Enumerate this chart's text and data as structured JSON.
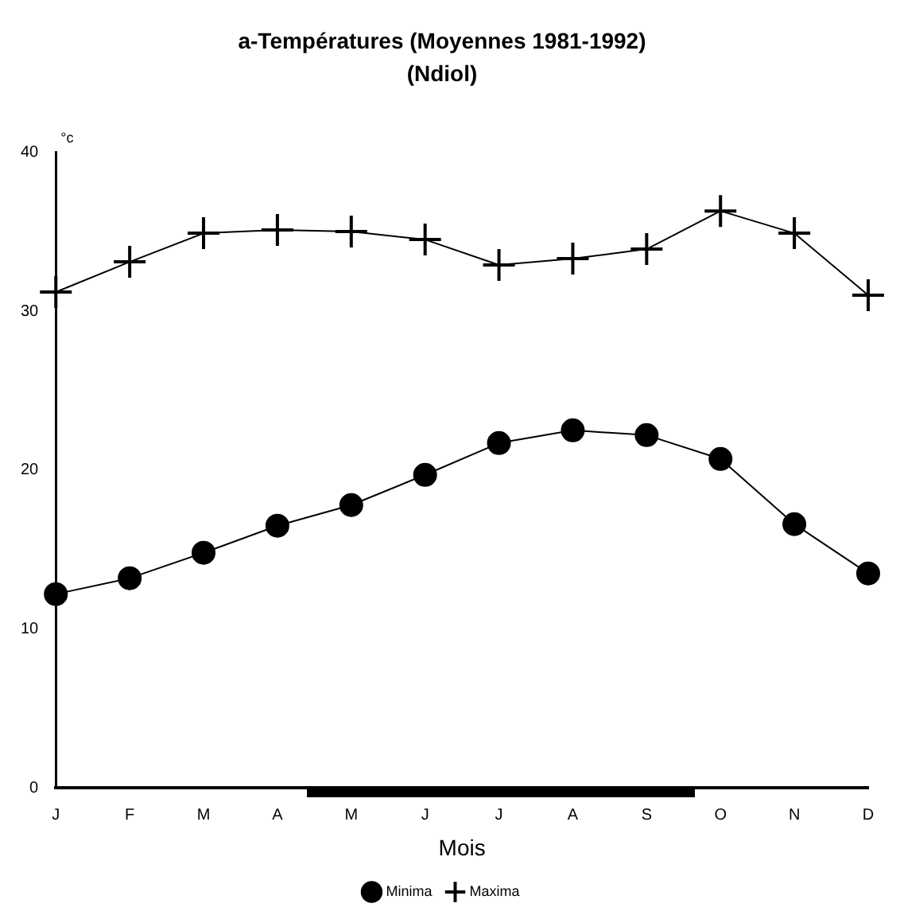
{
  "chart_data": {
    "type": "line",
    "title": "a-Températures (Moyennes 1981-1992)",
    "subtitle": "(Ndiol)",
    "xlabel": "Mois",
    "ylabel": "°c",
    "categories": [
      "J",
      "F",
      "M",
      "A",
      "M",
      "J",
      "J",
      "A",
      "S",
      "O",
      "N",
      "D"
    ],
    "series": [
      {
        "name": "Minima",
        "color": "#000000",
        "marker": "circle",
        "values": [
          12.2,
          13.2,
          14.8,
          16.5,
          17.8,
          19.7,
          21.7,
          22.5,
          22.2,
          20.7,
          16.6,
          13.5
        ]
      },
      {
        "name": "Maxima",
        "color": "#000000",
        "marker": "cross",
        "values": [
          31.2,
          33.1,
          34.9,
          35.1,
          35.0,
          34.5,
          32.9,
          33.3,
          33.9,
          36.3,
          34.9,
          31.0
        ]
      }
    ],
    "ylim": [
      0,
      40
    ],
    "yticks": [
      0,
      10,
      20,
      30,
      40
    ],
    "grid": false,
    "legend": "bottom"
  }
}
